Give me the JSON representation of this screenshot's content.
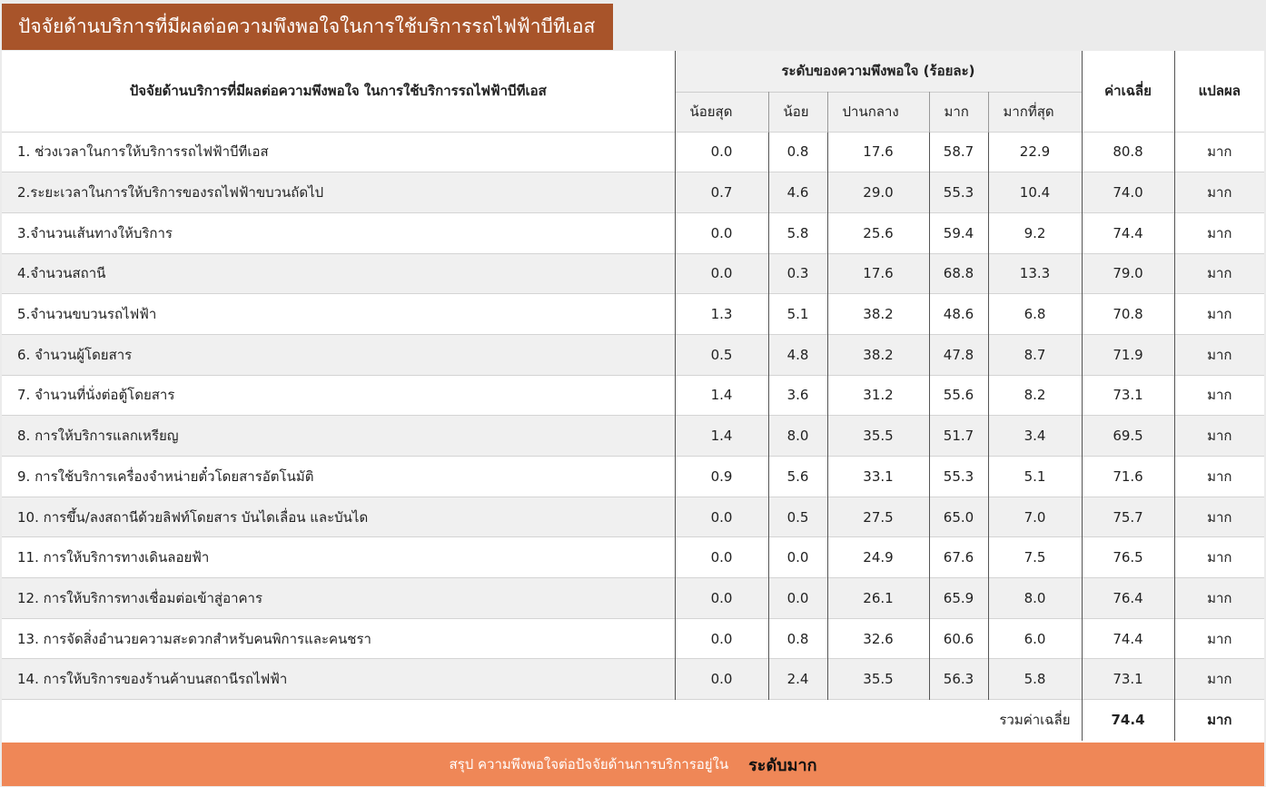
{
  "title": "ปัจจัยด้านบริการที่มีผลต่อความพึงพอใจในการใช้บริการรถไฟฟ้าบีทีเอส",
  "table": {
    "factor_header": "ปัจจัยด้านบริการที่มีผลต่อความพึงพอใจ ในการใช้บริการรถไฟฟ้าบีทีเอส",
    "level_header": "ระดับของความพึงพอใจ (ร้อยละ)",
    "mean_header": "ค่าเฉลี่ย",
    "interp_header": "แปลผล",
    "levels": [
      "น้อยสุด",
      "น้อย",
      "ปานกลาง",
      "มาก",
      "มากที่สุด"
    ],
    "rows": [
      {
        "label": "1. ช่วงเวลาในการให้บริการรถไฟฟ้าบีทีเอส",
        "v1": "0.0",
        "v2": "0.8",
        "v3": "17.6",
        "v4": "58.7",
        "v5": "22.9",
        "mean": "80.8",
        "interp": "มาก"
      },
      {
        "label": "2.ระยะเวลาในการให้บริการของรถไฟฟ้าขบวนถัดไป",
        "v1": "0.7",
        "v2": "4.6",
        "v3": "29.0",
        "v4": "55.3",
        "v5": "10.4",
        "mean": "74.0",
        "interp": "มาก"
      },
      {
        "label": "3.จำนวนเส้นทางให้บริการ",
        "v1": "0.0",
        "v2": "5.8",
        "v3": "25.6",
        "v4": "59.4",
        "v5": "9.2",
        "mean": "74.4",
        "interp": "มาก"
      },
      {
        "label": "4.จำนวนสถานี",
        "v1": "0.0",
        "v2": "0.3",
        "v3": "17.6",
        "v4": "68.8",
        "v5": "13.3",
        "mean": "79.0",
        "interp": "มาก"
      },
      {
        "label": "5.จำนวนขบวนรถไฟฟ้า",
        "v1": "1.3",
        "v2": "5.1",
        "v3": "38.2",
        "v4": "48.6",
        "v5": "6.8",
        "mean": "70.8",
        "interp": "มาก"
      },
      {
        "label": "6. จำนวนผู้โดยสาร",
        "v1": "0.5",
        "v2": "4.8",
        "v3": "38.2",
        "v4": "47.8",
        "v5": "8.7",
        "mean": "71.9",
        "interp": "มาก"
      },
      {
        "label": "7. จำนวนที่นั่งต่อตู้โดยสาร",
        "v1": "1.4",
        "v2": "3.6",
        "v3": "31.2",
        "v4": "55.6",
        "v5": "8.2",
        "mean": "73.1",
        "interp": "มาก"
      },
      {
        "label": "8. การให้บริการแลกเหรียญ",
        "v1": "1.4",
        "v2": "8.0",
        "v3": "35.5",
        "v4": "51.7",
        "v5": "3.4",
        "mean": "69.5",
        "interp": "มาก"
      },
      {
        "label": "9. การใช้บริการเครื่องจำหน่ายตั๋วโดยสารอัตโนมัติ",
        "v1": "0.9",
        "v2": "5.6",
        "v3": "33.1",
        "v4": "55.3",
        "v5": "5.1",
        "mean": "71.6",
        "interp": "มาก"
      },
      {
        "label": "10. การขึ้น/ลงสถานีด้วยลิฟท์โดยสาร บันไดเลื่อน และบันได",
        "v1": "0.0",
        "v2": "0.5",
        "v3": "27.5",
        "v4": "65.0",
        "v5": "7.0",
        "mean": "75.7",
        "interp": "มาก"
      },
      {
        "label": "11. การให้บริการทางเดินลอยฟ้า",
        "v1": "0.0",
        "v2": "0.0",
        "v3": "24.9",
        "v4": "67.6",
        "v5": "7.5",
        "mean": "76.5",
        "interp": "มาก"
      },
      {
        "label": "12. การให้บริการทางเชื่อมต่อเข้าสู่อาคาร",
        "v1": "0.0",
        "v2": "0.0",
        "v3": "26.1",
        "v4": "65.9",
        "v5": "8.0",
        "mean": "76.4",
        "interp": "มาก"
      },
      {
        "label": "13. การจัดสิ่งอำนวยความสะดวกสำหรับคนพิการและคนชรา",
        "v1": "0.0",
        "v2": "0.8",
        "v3": "32.6",
        "v4": "60.6",
        "v5": "6.0",
        "mean": "74.4",
        "interp": "มาก"
      },
      {
        "label": "14. การให้บริการของร้านค้าบนสถานีรถไฟฟ้า",
        "v1": "0.0",
        "v2": "2.4",
        "v3": "35.5",
        "v4": "56.3",
        "v5": "5.8",
        "mean": "73.1",
        "interp": "มาก"
      }
    ],
    "summary": {
      "label": "รวมค่าเฉลี่ย",
      "mean": "74.4",
      "interp": "มาก"
    }
  },
  "footer": {
    "text": "สรุป ความพึงพอใจต่อปัจจัยด้านการบริการอยู่ใน",
    "level": "ระดับมาก"
  },
  "colors": {
    "title_bg": "#a8542a",
    "footer_bg": "#ef8757",
    "row_alt": "#f0f0f0"
  }
}
